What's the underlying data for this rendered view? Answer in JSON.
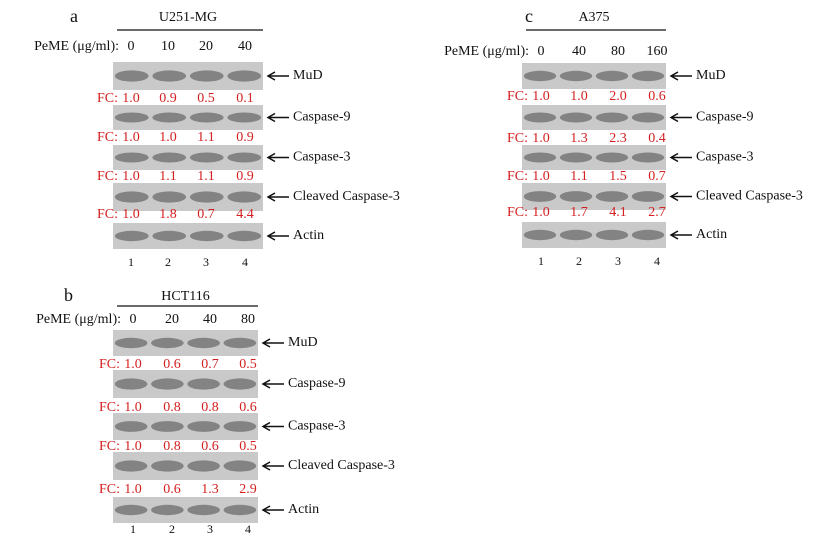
{
  "panels": [
    {
      "letter": "a",
      "cell_line": "U251-MG",
      "treatment": "PeME  (μg/ml):",
      "doses": [
        "0",
        "10",
        "20",
        "40"
      ],
      "blots": [
        {
          "name": "MuD",
          "fc_label": "FC:",
          "fc": [
            "1.0",
            "0.9",
            "0.5",
            "0.1"
          ]
        },
        {
          "name": "Caspase-9",
          "fc_label": "FC:",
          "fc": [
            "1.0",
            "1.0",
            "1.1",
            "0.9"
          ]
        },
        {
          "name": "Caspase-3",
          "fc_label": "FC:",
          "fc": [
            "1.0",
            "1.1",
            "1.1",
            "0.9"
          ]
        },
        {
          "name": "Cleaved Caspase-3",
          "fc_label": "FC:",
          "fc": [
            "1.0",
            "1.8",
            "0.7",
            "4.4"
          ]
        },
        {
          "name": "Actin"
        }
      ],
      "lanes": [
        "1",
        "2",
        "3",
        "4"
      ]
    },
    {
      "letter": "b",
      "cell_line": "HCT116",
      "treatment": "PeME  (μg/ml):",
      "doses": [
        "0",
        "20",
        "40",
        "80"
      ],
      "blots": [
        {
          "name": "MuD",
          "fc_label": "FC:",
          "fc": [
            "1.0",
            "0.6",
            "0.7",
            "0.5"
          ]
        },
        {
          "name": "Caspase-9",
          "fc_label": "FC:",
          "fc": [
            "1.0",
            "0.8",
            "0.8",
            "0.6"
          ]
        },
        {
          "name": "Caspase-3",
          "fc_label": "FC:",
          "fc": [
            "1.0",
            "0.8",
            "0.6",
            "0.5"
          ]
        },
        {
          "name": "Cleaved Caspase-3",
          "fc_label": "FC:",
          "fc": [
            "1.0",
            "0.6",
            "1.3",
            "2.9"
          ]
        },
        {
          "name": "Actin"
        }
      ],
      "lanes": [
        "1",
        "2",
        "3",
        "4"
      ]
    },
    {
      "letter": "c",
      "cell_line": "A375",
      "treatment": "PeME  (μg/ml):",
      "doses": [
        "0",
        "40",
        "80",
        "160"
      ],
      "blots": [
        {
          "name": "MuD",
          "fc_label": "FC:",
          "fc": [
            "1.0",
            "1.0",
            "2.0",
            "0.6"
          ]
        },
        {
          "name": "Caspase-9",
          "fc_label": "FC:",
          "fc": [
            "1.0",
            "1.3",
            "2.3",
            "0.4"
          ]
        },
        {
          "name": "Caspase-3",
          "fc_label": "FC:",
          "fc": [
            "1.0",
            "1.1",
            "1.5",
            "0.7"
          ]
        },
        {
          "name": "Cleaved Caspase-3",
          "fc_label": "FC:",
          "fc": [
            "1.0",
            "1.7",
            "4.1",
            "2.7"
          ]
        },
        {
          "name": "Actin"
        }
      ],
      "lanes": [
        "1",
        "2",
        "3",
        "4"
      ]
    }
  ]
}
